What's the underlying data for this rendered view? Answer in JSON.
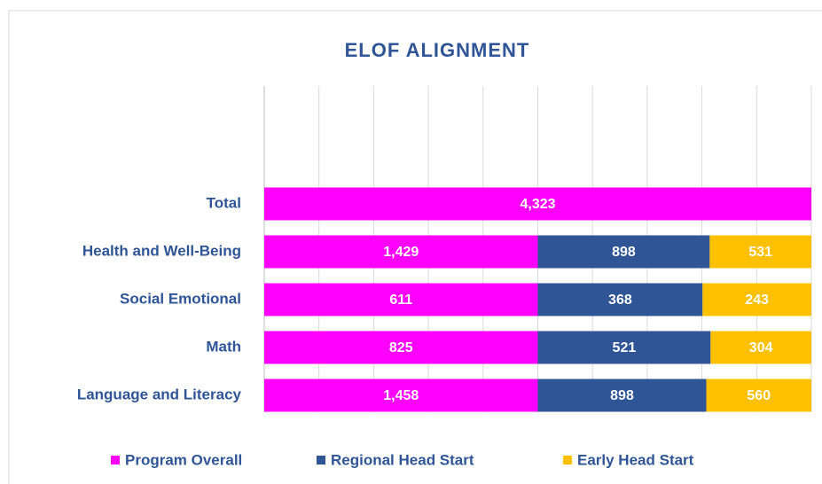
{
  "chart_data": {
    "type": "bar",
    "orientation": "horizontal",
    "stack": "percent",
    "title": "ELOF ALIGNMENT",
    "categories": [
      "Total",
      "Health and Well-Being",
      "Social Emotional",
      "Math",
      "Language and Literacy"
    ],
    "series": [
      {
        "name": "Program Overall",
        "color": "#ff00ff",
        "values": [
          4323,
          1429,
          611,
          825,
          1458
        ],
        "value_labels": [
          "4,323",
          "1,429",
          "611",
          "825",
          "1,458"
        ]
      },
      {
        "name": "Regional Head Start",
        "color": "#2f5597",
        "values": [
          null,
          898,
          368,
          521,
          898
        ],
        "value_labels": [
          null,
          "898",
          "368",
          "521",
          "898"
        ]
      },
      {
        "name": "Early Head Start",
        "color": "#ffc000",
        "values": [
          null,
          531,
          243,
          304,
          560
        ],
        "value_labels": [
          null,
          "531",
          "243",
          "304",
          "560"
        ]
      }
    ],
    "xlim": [
      0,
      100
    ],
    "xticks": [
      0,
      10,
      20,
      30,
      40,
      50,
      60,
      70,
      80,
      90,
      100
    ],
    "grid": true,
    "legend": "bottom"
  }
}
